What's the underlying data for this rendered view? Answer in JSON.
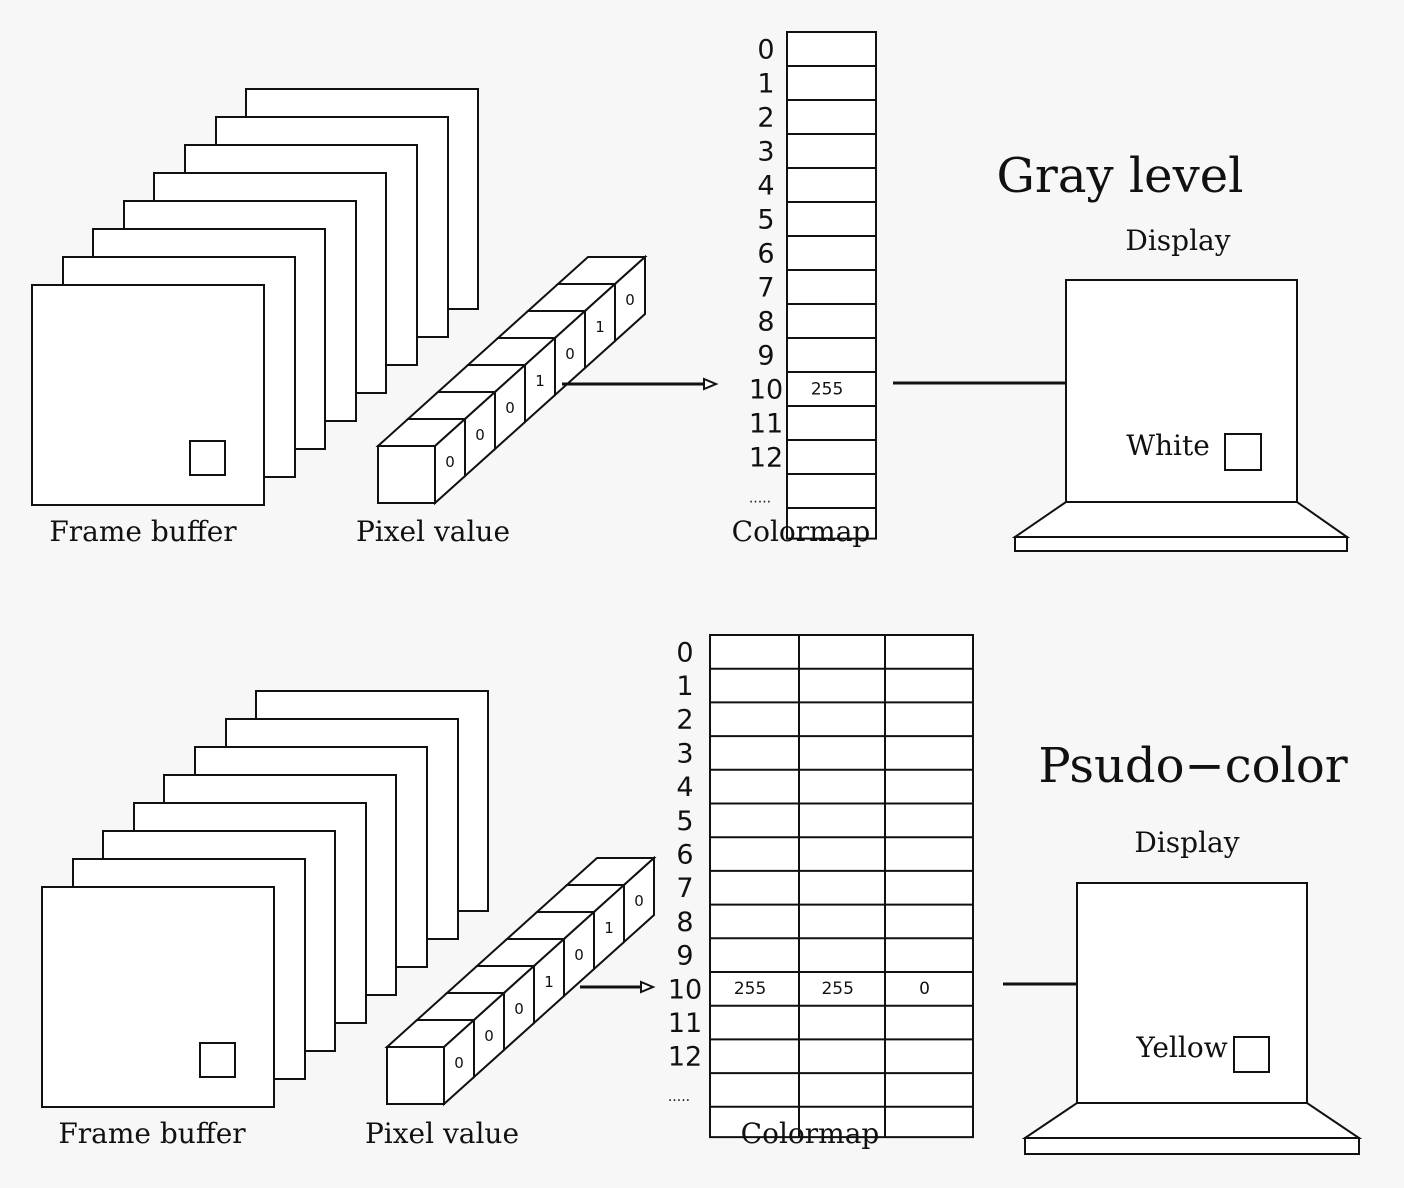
{
  "panels": [
    {
      "id": "gray",
      "title": "Gray level",
      "frame_buffer_label": "Frame buffer",
      "pixel_value_label": "Pixel value",
      "pixel_bits": [
        "0",
        "0",
        "0",
        "1",
        "0",
        "1",
        "0"
      ],
      "colormap_label": "Colormap",
      "colormap_indices": [
        "0",
        "1",
        "2",
        "3",
        "4",
        "5",
        "6",
        "7",
        "8",
        "9",
        "10",
        "11",
        "12"
      ],
      "colormap_ellipsis": "·····",
      "colormap_row10_values": [
        "255"
      ],
      "display_label": "Display",
      "pixel_color_label": "White"
    },
    {
      "id": "psudo",
      "title": "Psudo−color",
      "frame_buffer_label": "Frame buffer",
      "pixel_value_label": "Pixel value",
      "pixel_bits": [
        "0",
        "0",
        "0",
        "1",
        "0",
        "1",
        "0"
      ],
      "colormap_label": "Colormap",
      "colormap_indices": [
        "0",
        "1",
        "2",
        "3",
        "4",
        "5",
        "6",
        "7",
        "8",
        "9",
        "10",
        "11",
        "12"
      ],
      "colormap_ellipsis": "·····",
      "colormap_row10_values": [
        "255",
        "255",
        "0"
      ],
      "display_label": "Display",
      "pixel_color_label": "Yellow"
    }
  ],
  "colors": {
    "stroke": "#111111",
    "fill": "#ffffff",
    "background": "#f7f7f7"
  }
}
